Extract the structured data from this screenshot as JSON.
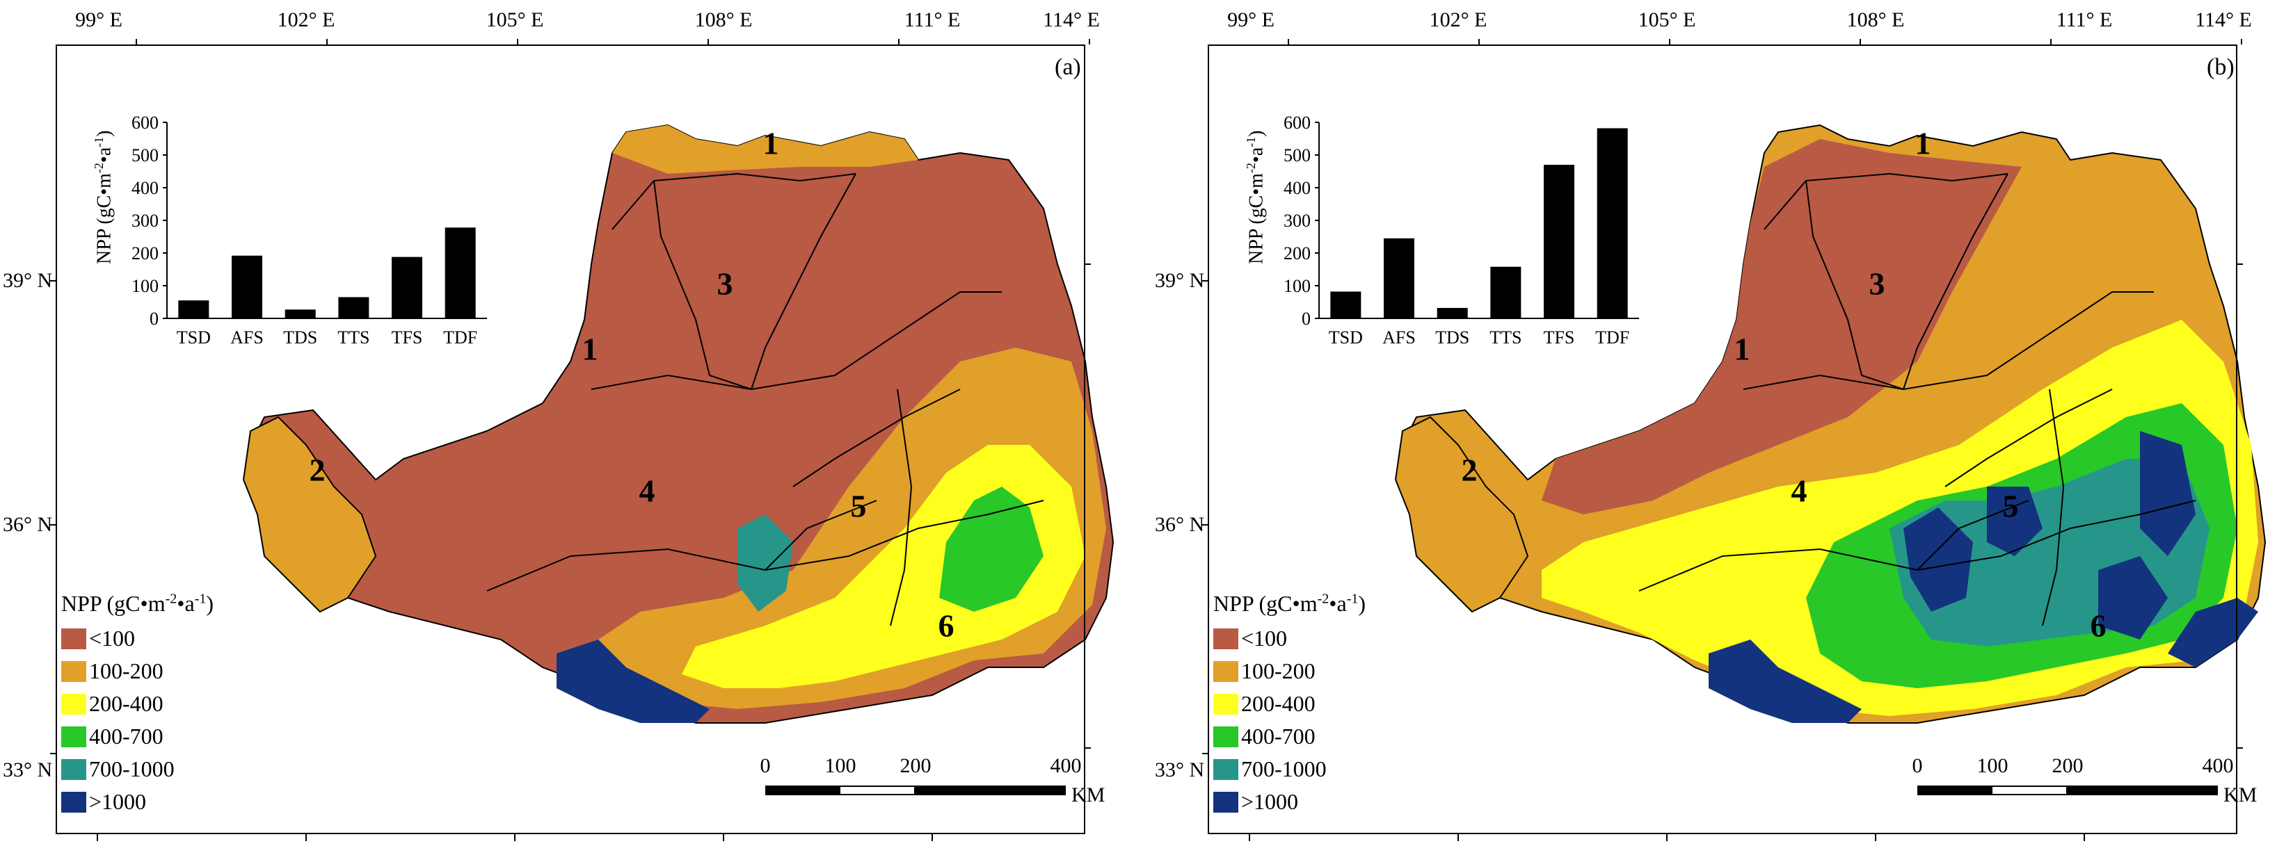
{
  "panels": [
    {
      "letter": "(a)",
      "lon_labels": [
        "99° E",
        "102° E",
        "105° E",
        "108° E",
        "111° E",
        "114° E"
      ],
      "lat_labels": [
        "39° N",
        "36° N",
        "33° N"
      ],
      "regions": [
        "1",
        "1",
        "2",
        "3",
        "4",
        "5",
        "6"
      ],
      "legend": {
        "title_main": "NPP (gC•m",
        "title_sup1": "-2",
        "title_mid": "•a",
        "title_sup2": "-1",
        "title_end": ")",
        "classes": [
          "<100",
          "100-200",
          "200-400",
          "400-700",
          "700-1000",
          ">1000"
        ]
      },
      "scale": {
        "ticks": [
          "0",
          "100",
          "200",
          "400"
        ],
        "unit": "KM"
      },
      "chart_data": {
        "type": "bar",
        "categories": [
          "TSD",
          "AFS",
          "TDS",
          "TTS",
          "TFS",
          "TDF"
        ],
        "values": [
          55,
          192,
          27,
          65,
          188,
          278
        ],
        "ylabel": "NPP (gC•m⁻²•a⁻¹)",
        "ylim": [
          0,
          600
        ],
        "yticks": [
          "0",
          "100",
          "200",
          "300",
          "400",
          "500",
          "600"
        ]
      }
    },
    {
      "letter": "(b)",
      "lon_labels": [
        "99° E",
        "102° E",
        "105° E",
        "108° E",
        "111° E",
        "114° E"
      ],
      "lat_labels": [
        "39° N",
        "36° N",
        "33° N"
      ],
      "regions": [
        "1",
        "1",
        "2",
        "3",
        "4",
        "5",
        "6"
      ],
      "legend": {
        "title_main": "NPP (gC•m",
        "title_sup1": "-2",
        "title_mid": "•a",
        "title_sup2": "-1",
        "title_end": ")",
        "classes": [
          "<100",
          "100-200",
          "200-400",
          "400-700",
          "700-1000",
          ">1000"
        ]
      },
      "scale": {
        "ticks": [
          "0",
          "100",
          "200",
          "400"
        ],
        "unit": "KM"
      },
      "chart_data": {
        "type": "bar",
        "categories": [
          "TSD",
          "AFS",
          "TDS",
          "TTS",
          "TFS",
          "TDF"
        ],
        "values": [
          82,
          245,
          32,
          158,
          470,
          582
        ],
        "ylabel": "NPP (gC•m⁻²•a⁻¹)",
        "ylim": [
          0,
          600
        ],
        "yticks": [
          "0",
          "100",
          "200",
          "300",
          "400",
          "500",
          "600"
        ]
      }
    }
  ],
  "legend_colors": [
    "#b95a44",
    "#e0a02a",
    "#ffff1e",
    "#28c828",
    "#26968a",
    "#13337e"
  ]
}
